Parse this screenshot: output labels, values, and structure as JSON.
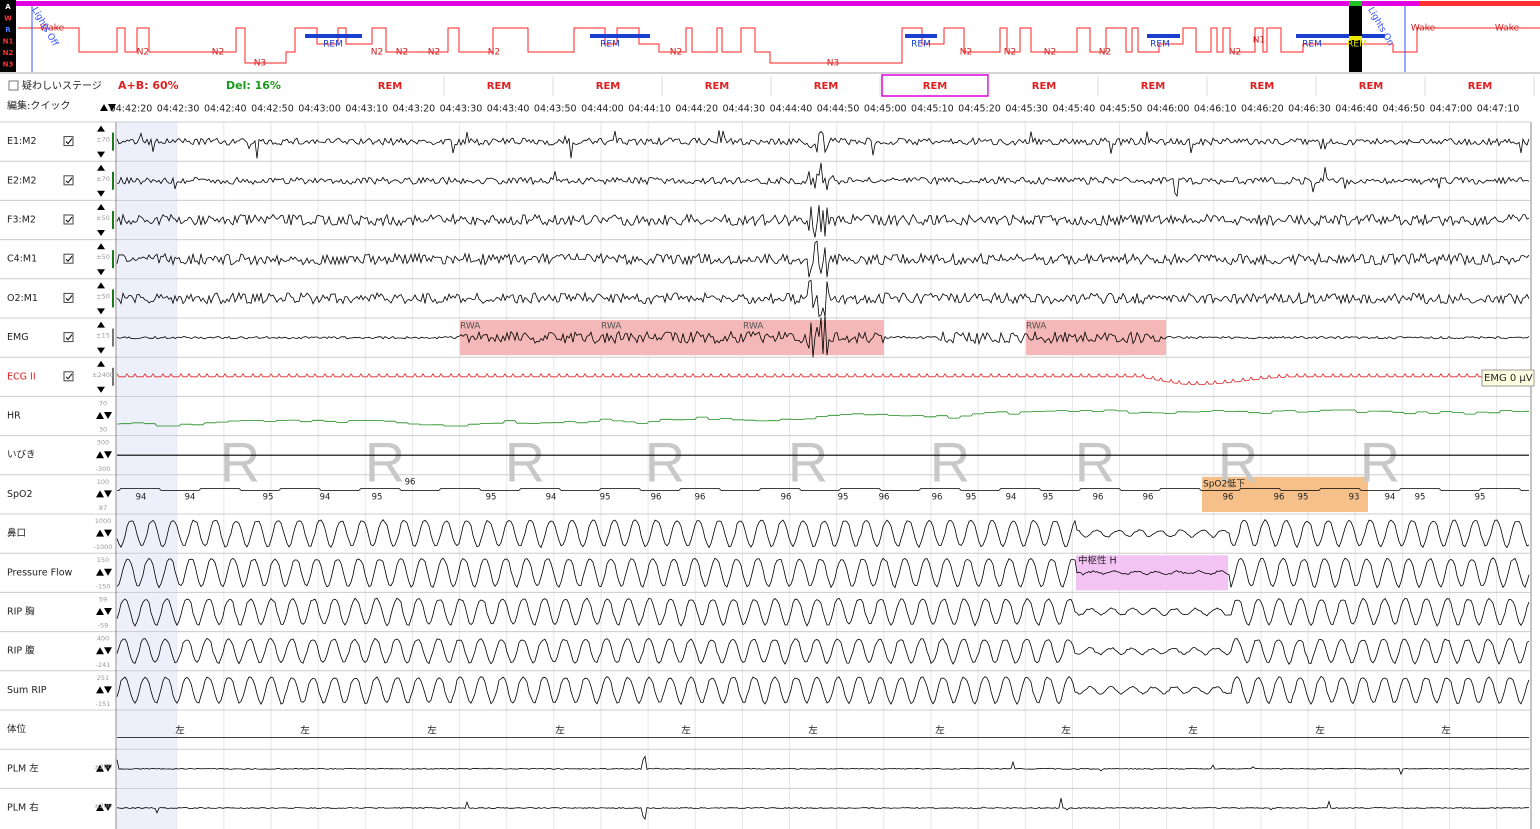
{
  "hypnogram": {
    "stage_keys": [
      "A",
      "W",
      "R",
      "N1",
      "N2",
      "N3"
    ],
    "labels": [
      "Wake",
      "N2",
      "N2",
      "N3",
      "REM",
      "N2",
      "N2",
      "N2",
      "N2",
      "REM",
      "N2",
      "N3",
      "REM",
      "N2",
      "N2",
      "N2",
      "N2",
      "REM",
      "N2",
      "N1",
      "REM",
      "REM",
      "Wake",
      "Wake"
    ],
    "lights_off": "Lights Off",
    "lights_on": "Lights On"
  },
  "toolbar": {
    "questionable_stage": "疑わしいステージ",
    "ab": "A+B: 60%",
    "del": "Del: 16%",
    "edit_mode": "編集:クイック",
    "epochs": [
      "REM",
      "REM",
      "REM",
      "REM",
      "REM",
      "REM",
      "REM",
      "REM",
      "REM",
      "REM",
      "REM"
    ]
  },
  "times": [
    "04:42:20",
    "04:42:30",
    "04:42:40",
    "04:42:50",
    "04:43:00",
    "04:43:10",
    "04:43:20",
    "04:43:30",
    "04:43:40",
    "04:43:50",
    "04:44:00",
    "04:44:10",
    "04:44:20",
    "04:44:30",
    "04:44:40",
    "04:44:50",
    "04:45:00",
    "04:45:10",
    "04:45:20",
    "04:45:30",
    "04:45:40",
    "04:45:50",
    "04:46:00",
    "04:46:10",
    "04:46:20",
    "04:46:30",
    "04:46:40",
    "04:46:50",
    "04:47:00",
    "04:47:10"
  ],
  "channels": [
    {
      "name": "E1:M2",
      "scale": [
        "±70"
      ]
    },
    {
      "name": "E2:M2",
      "scale": [
        "±70"
      ]
    },
    {
      "name": "F3:M2",
      "scale": [
        "±50"
      ]
    },
    {
      "name": "C4:M1",
      "scale": [
        "±50"
      ]
    },
    {
      "name": "O2:M1",
      "scale": [
        "±50"
      ]
    },
    {
      "name": "EMG",
      "scale": [
        "±15"
      ]
    },
    {
      "name": "ECG II",
      "scale": [
        "±2400"
      ]
    },
    {
      "name": "HR",
      "scale": [
        "70",
        "30"
      ]
    },
    {
      "name": "いびき",
      "scale": [
        "300",
        "-300"
      ]
    },
    {
      "name": "SpO2",
      "scale": [
        "100",
        "87"
      ]
    },
    {
      "name": "鼻口",
      "scale": [
        "1000",
        "-1000"
      ]
    },
    {
      "name": "Pressure Flow",
      "scale": [
        "150",
        "-150"
      ]
    },
    {
      "name": "RIP 胸",
      "scale": [
        "59",
        "-59"
      ]
    },
    {
      "name": "RIP 腹",
      "scale": [
        "400",
        "-241"
      ]
    },
    {
      "name": "Sum RIP",
      "scale": [
        "251",
        "-151"
      ]
    },
    {
      "name": "体位",
      "scale": []
    },
    {
      "name": "PLM 左",
      "scale": [
        "±200"
      ]
    },
    {
      "name": "PLM 右",
      "scale": [
        "±200"
      ]
    }
  ],
  "annotations": {
    "rwa_labels": [
      "RWA",
      "RWA",
      "RWA",
      "RWA"
    ],
    "emg_tooltip": "EMG 0 µV",
    "central_hypopnea": "中枢性 H",
    "spo2_drop": "SpO2低下",
    "spo2_values": [
      "94",
      "94",
      "95",
      "94",
      "95",
      "96",
      "95",
      "94",
      "95",
      "96",
      "96",
      "96",
      "95",
      "96",
      "96",
      "95",
      "94",
      "95",
      "96",
      "96",
      "96",
      "96",
      "95",
      "93",
      "94",
      "95",
      "95"
    ],
    "stage_watermark": "R",
    "position": "左"
  }
}
